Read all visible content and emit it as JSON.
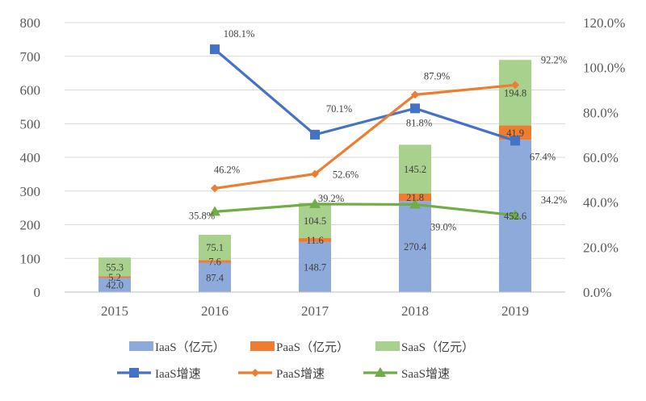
{
  "chart_data": {
    "type": "bar",
    "categories": [
      "2015",
      "2016",
      "2017",
      "2018",
      "2019"
    ],
    "ylim": [
      0,
      800
    ],
    "yticks": [
      "0",
      "100",
      "200",
      "300",
      "400",
      "500",
      "600",
      "700",
      "800"
    ],
    "y2lim": [
      0,
      120
    ],
    "y2ticks": [
      "0.0%",
      "20.0%",
      "40.0%",
      "60.0%",
      "80.0%",
      "100.0%",
      "120.0%"
    ],
    "grid": true,
    "legend_position": "bottom",
    "bar_series": [
      {
        "name": "IaaS（亿元）",
        "color": "#8eaadb",
        "values": [
          42.0,
          87.4,
          148.7,
          270.4,
          452.6
        ],
        "labels": [
          "42.0",
          "87.4",
          "148.7",
          "270.4",
          "452.6"
        ]
      },
      {
        "name": "PaaS（亿元）",
        "color": "#ed7d31",
        "values": [
          5.2,
          7.6,
          11.6,
          21.8,
          41.9
        ],
        "labels": [
          "5.2",
          "7.6",
          "11.6",
          "21.8",
          "41.9"
        ]
      },
      {
        "name": "SaaS（亿元）",
        "color": "#a9d18e",
        "values": [
          55.3,
          75.1,
          104.5,
          145.2,
          194.8
        ],
        "labels": [
          "55.3",
          "75.1",
          "104.5",
          "145.2",
          "194.8"
        ]
      }
    ],
    "line_series": [
      {
        "name": "IaaS增速",
        "color": "#4472c4",
        "marker": "square",
        "values": [
          null,
          108.1,
          70.1,
          81.8,
          67.4
        ],
        "labels": [
          null,
          "108.1%",
          "70.1%",
          "81.8%",
          "67.4%"
        ]
      },
      {
        "name": "PaaS增速",
        "color": "#ed7d31",
        "marker": "diamond",
        "values": [
          null,
          46.2,
          52.6,
          87.9,
          92.2
        ],
        "labels": [
          null,
          "46.2%",
          "52.6%",
          "87.9%",
          "92.2%"
        ]
      },
      {
        "name": "SaaS增速",
        "color": "#70ad47",
        "marker": "triangle",
        "values": [
          null,
          35.8,
          39.2,
          39.0,
          34.2
        ],
        "labels": [
          null,
          "35.8%",
          "39.2%",
          "39.0%",
          "34.2%"
        ]
      }
    ]
  }
}
